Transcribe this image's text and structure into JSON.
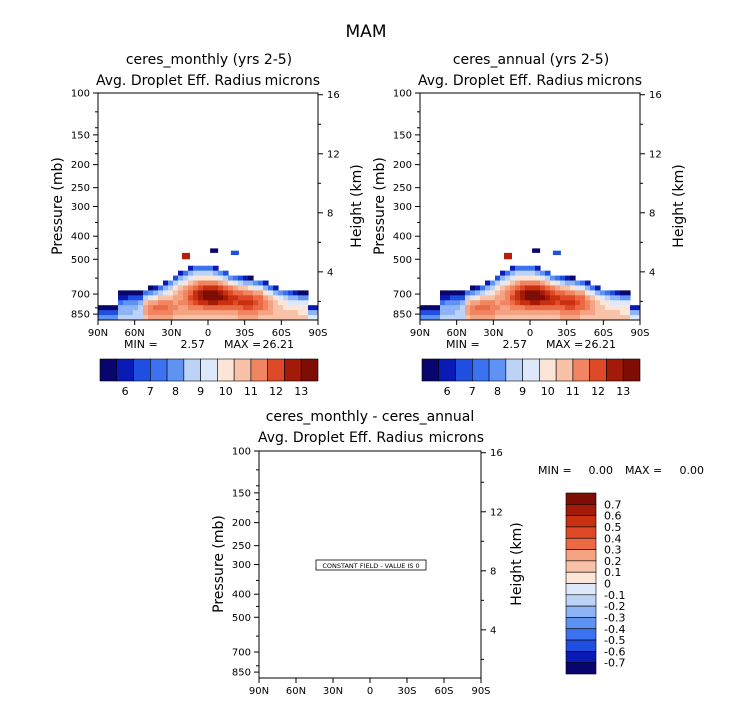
{
  "figure": {
    "title": "MAM",
    "min_label": "MIN =",
    "max_label": "MAX ="
  },
  "panels": [
    {
      "title": "ceres_monthly (yrs 2-5)",
      "left_label": "Avg. Droplet Eff. Radius",
      "units": "microns",
      "ylabel": "Pressure (mb)",
      "ylabel_right": "Height (km)",
      "min": "2.57",
      "max": "26.21"
    },
    {
      "title": "ceres_annual (yrs 2-5)",
      "left_label": "Avg. Droplet Eff. Radius",
      "units": "microns",
      "ylabel": "Pressure (mb)",
      "ylabel_right": "Height (km)",
      "min": "2.57",
      "max": "26.21"
    },
    {
      "title": "ceres_monthly - ceres_annual",
      "left_label": "Avg. Droplet Eff. Radius",
      "units": "microns",
      "ylabel": "Pressure (mb)",
      "ylabel_right": "Height (km)",
      "min": "0.00",
      "max": "0.00",
      "note": "CONSTANT FIELD - VALUE IS 0"
    }
  ],
  "chart_data": [
    {
      "type": "heatmap",
      "title": "ceres_monthly (yrs 2-5)",
      "subtitle": "Avg. Droplet Eff. Radius",
      "units": "microns",
      "ylabel": "Pressure (mb)",
      "ylabel_right": "Height (km)",
      "x_ticks": [
        "90N",
        "60N",
        "30N",
        "0",
        "30S",
        "60S",
        "90S"
      ],
      "y_ticks": [
        "100",
        "150",
        "200",
        "250",
        "300",
        "400",
        "500",
        "700",
        "850"
      ],
      "y_right_ticks": [
        "4",
        "8",
        "12",
        "16"
      ],
      "levels": [
        "6",
        "7",
        "8",
        "9",
        "10",
        "11",
        "12",
        "13"
      ],
      "min": 2.57,
      "max": 26.21,
      "grid": false
    },
    {
      "type": "heatmap",
      "title": "ceres_annual (yrs 2-5)",
      "subtitle": "Avg. Droplet Eff. Radius",
      "units": "microns",
      "ylabel": "Pressure (mb)",
      "ylabel_right": "Height (km)",
      "x_ticks": [
        "90N",
        "60N",
        "30N",
        "0",
        "30S",
        "60S",
        "90S"
      ],
      "y_ticks": [
        "100",
        "150",
        "200",
        "250",
        "300",
        "400",
        "500",
        "700",
        "850"
      ],
      "y_right_ticks": [
        "4",
        "8",
        "12",
        "16"
      ],
      "levels": [
        "6",
        "7",
        "8",
        "9",
        "10",
        "11",
        "12",
        "13"
      ],
      "min": 2.57,
      "max": 26.21,
      "grid": false
    },
    {
      "type": "heatmap",
      "title": "ceres_monthly - ceres_annual",
      "subtitle": "Avg. Droplet Eff. Radius",
      "units": "microns",
      "ylabel": "Pressure (mb)",
      "ylabel_right": "Height (km)",
      "x_ticks": [
        "90N",
        "60N",
        "30N",
        "0",
        "30S",
        "60S",
        "90S"
      ],
      "y_ticks": [
        "100",
        "150",
        "200",
        "250",
        "300",
        "400",
        "500",
        "700",
        "850"
      ],
      "y_right_ticks": [
        "4",
        "8",
        "12",
        "16"
      ],
      "levels": [
        "0.7",
        "0.6",
        "0.5",
        "0.4",
        "0.3",
        "0.2",
        "0.1",
        "0",
        "-0.1",
        "-0.2",
        "-0.3",
        "-0.4",
        "-0.5",
        "-0.6",
        "-0.7"
      ],
      "min": 0.0,
      "max": 0.0,
      "note": "CONSTANT FIELD - VALUE IS 0",
      "grid": false
    }
  ],
  "colors": {
    "levels_blue_to_red": [
      "#08066e",
      "#0a1ab4",
      "#1f4fe0",
      "#3c72ef",
      "#5e92f3",
      "#8eb4f5",
      "#bcd3f7",
      "#dde9fb",
      "#fbe5d6",
      "#f7c2a8",
      "#f4a383",
      "#f18561",
      "#ec6a43",
      "#de4a28",
      "#c8300f",
      "#a41a08",
      "#7e0d05"
    ]
  }
}
